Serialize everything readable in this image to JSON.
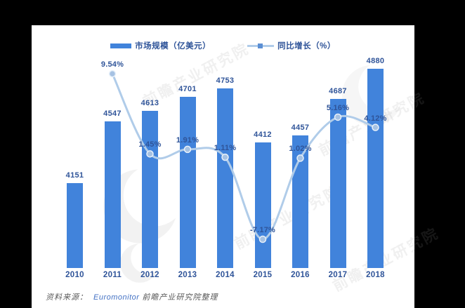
{
  "chart_data": {
    "type": "bar",
    "categories": [
      "2010",
      "2011",
      "2012",
      "2013",
      "2014",
      "2015",
      "2016",
      "2017",
      "2018"
    ],
    "series": [
      {
        "name": "市场规模（亿美元）",
        "type": "bar",
        "values": [
          4151,
          4547,
          4613,
          4701,
          4753,
          4412,
          4457,
          4687,
          4880
        ]
      },
      {
        "name": "同比增长（%）",
        "type": "line",
        "values": [
          null,
          9.54,
          1.45,
          1.91,
          1.11,
          -7.17,
          1.02,
          5.16,
          4.12
        ]
      }
    ],
    "value_labels": [
      "4151",
      "4547",
      "4613",
      "4701",
      "4753",
      "4412",
      "4457",
      "4687",
      "4880"
    ],
    "pct_labels": [
      null,
      "9.54%",
      "1.45%",
      "1.91%",
      "1.11%",
      "-7.17%",
      "1.02%",
      "5.16%",
      "4.12%"
    ],
    "title": "",
    "xlabel": "",
    "ylabel": "",
    "legend_position": "top",
    "grid": false,
    "bar_axis_range": [
      3610,
      4950
    ],
    "line_axis_range": [
      -10,
      12
    ]
  },
  "legend": {
    "bar_label": "市场规模（亿美元）",
    "line_label": "同比增长（%）"
  },
  "source": {
    "prefix": "资料来源：",
    "org": "Euromonitor",
    "suffix": "前瞻产业研究院整理"
  },
  "watermark": {
    "text": "前瞻产业研究院"
  },
  "colors": {
    "bar": "#4183db",
    "line": "#b0cce9",
    "marker_fill": "#a6c2e3",
    "marker_stroke": "#e8f1fa",
    "label": "#2f5499",
    "source_text": "#595959",
    "source_link": "#4472c4",
    "panel": "#ffffff",
    "background": "#000000",
    "watermark": "#9a9a9a"
  }
}
